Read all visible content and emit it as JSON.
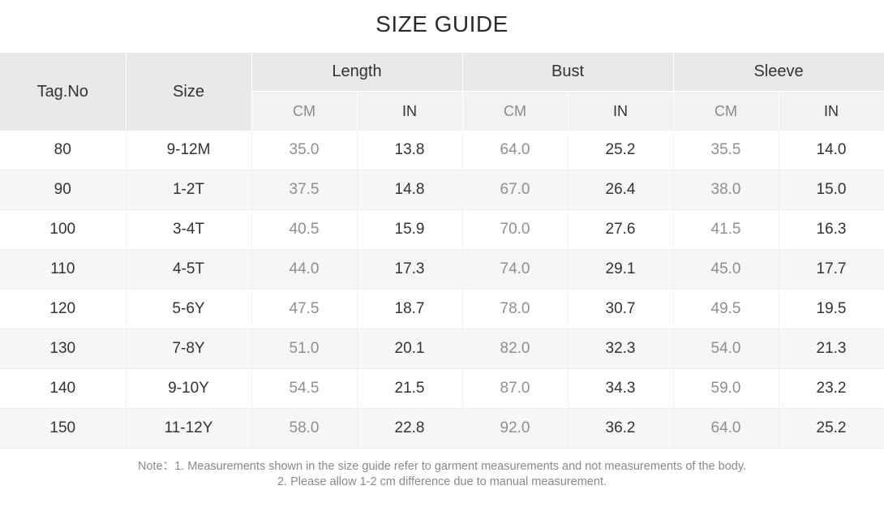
{
  "title": "SIZE GUIDE",
  "header": {
    "tag_no": "Tag.No",
    "size": "Size",
    "groups": [
      "Length",
      "Bust",
      "Sleeve"
    ],
    "units": [
      "CM",
      "IN",
      "CM",
      "IN",
      "CM",
      "IN"
    ]
  },
  "rows": [
    {
      "tag": "80",
      "size": "9-12M",
      "length_cm": "35.0",
      "length_in": "13.8",
      "bust_cm": "64.0",
      "bust_in": "25.2",
      "sleeve_cm": "35.5",
      "sleeve_in": "14.0"
    },
    {
      "tag": "90",
      "size": "1-2T",
      "length_cm": "37.5",
      "length_in": "14.8",
      "bust_cm": "67.0",
      "bust_in": "26.4",
      "sleeve_cm": "38.0",
      "sleeve_in": "15.0"
    },
    {
      "tag": "100",
      "size": "3-4T",
      "length_cm": "40.5",
      "length_in": "15.9",
      "bust_cm": "70.0",
      "bust_in": "27.6",
      "sleeve_cm": "41.5",
      "sleeve_in": "16.3"
    },
    {
      "tag": "110",
      "size": "4-5T",
      "length_cm": "44.0",
      "length_in": "17.3",
      "bust_cm": "74.0",
      "bust_in": "29.1",
      "sleeve_cm": "45.0",
      "sleeve_in": "17.7"
    },
    {
      "tag": "120",
      "size": "5-6Y",
      "length_cm": "47.5",
      "length_in": "18.7",
      "bust_cm": "78.0",
      "bust_in": "30.7",
      "sleeve_cm": "49.5",
      "sleeve_in": "19.5"
    },
    {
      "tag": "130",
      "size": "7-8Y",
      "length_cm": "51.0",
      "length_in": "20.1",
      "bust_cm": "82.0",
      "bust_in": "32.3",
      "sleeve_cm": "54.0",
      "sleeve_in": "21.3"
    },
    {
      "tag": "140",
      "size": "9-10Y",
      "length_cm": "54.5",
      "length_in": "21.5",
      "bust_cm": "87.0",
      "bust_in": "34.3",
      "sleeve_cm": "59.0",
      "sleeve_in": "23.2"
    },
    {
      "tag": "150",
      "size": "11-12Y",
      "length_cm": "58.0",
      "length_in": "22.8",
      "bust_cm": "92.0",
      "bust_in": "36.2",
      "sleeve_cm": "64.0",
      "sleeve_in": "25.2"
    }
  ],
  "notes": {
    "line1": "Note：1. Measurements shown in the size guide refer to garment measurements and not measurements of the body.",
    "line2": "2. Please allow 1-2 cm difference due to manual measurement."
  }
}
